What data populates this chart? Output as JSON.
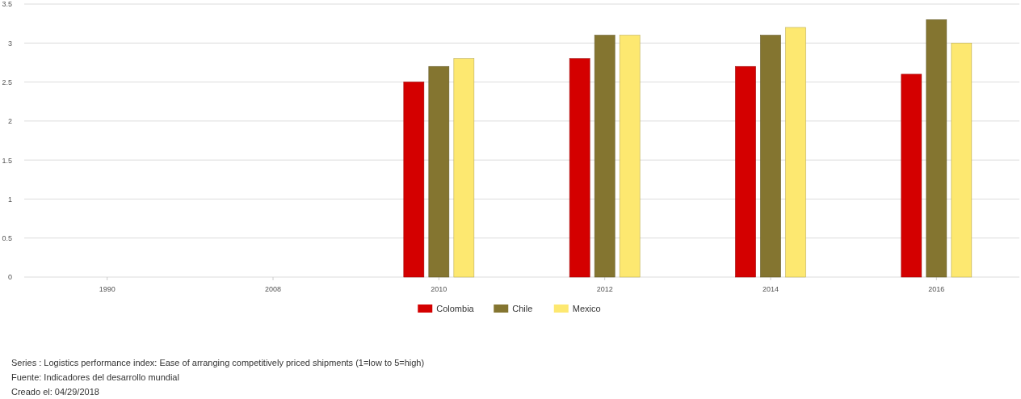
{
  "chart_data": {
    "type": "bar",
    "categories": [
      "1990",
      "2008",
      "2010",
      "2012",
      "2014",
      "2016"
    ],
    "series": [
      {
        "name": "Colombia",
        "color": "#d40000",
        "values": [
          null,
          null,
          2.5,
          2.8,
          2.7,
          2.6
        ]
      },
      {
        "name": "Chile",
        "color": "#847530",
        "values": [
          null,
          null,
          2.7,
          3.1,
          3.1,
          3.3
        ]
      },
      {
        "name": "Mexico",
        "color": "#fde870",
        "values": [
          null,
          null,
          2.8,
          3.1,
          3.2,
          3.0
        ]
      }
    ],
    "ylim": [
      0,
      3.5
    ],
    "yticks": [
      0,
      0.5,
      1,
      1.5,
      2,
      2.5,
      3,
      3.5
    ],
    "grid": "y",
    "legend": "bottom",
    "annotations": [
      "Series : Logistics performance index: Ease of arranging competitively priced shipments (1=low to 5=high)",
      "Fuente: Indicadores del desarrollo mundial",
      "Creado el: 04/29/2018"
    ]
  }
}
